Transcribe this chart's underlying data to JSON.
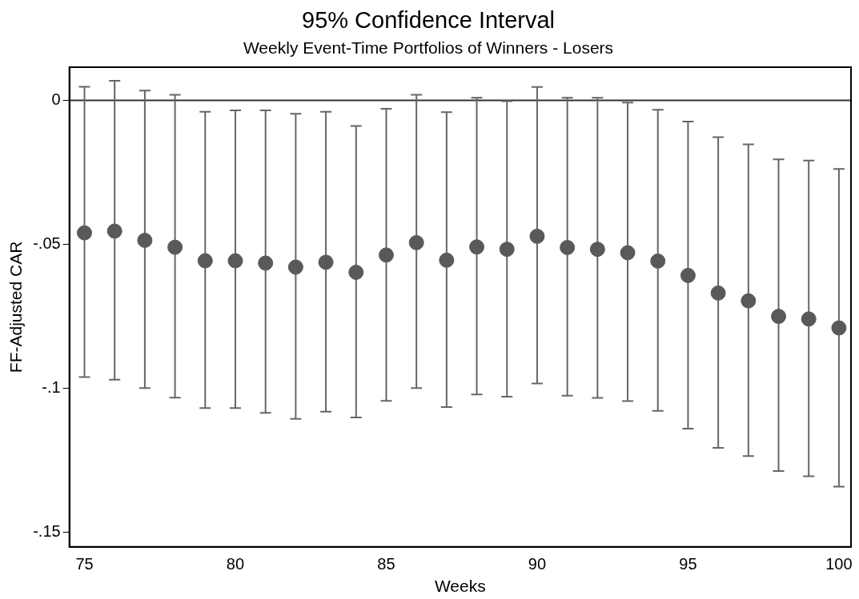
{
  "chart_data": {
    "type": "scatter",
    "title": "95% Confidence Interval",
    "subtitle": "Weekly Event-Time Portfolios of Winners - Losers",
    "xlabel": "Weeks",
    "ylabel": "FF-Adjusted CAR",
    "x": [
      75,
      76,
      77,
      78,
      79,
      80,
      81,
      82,
      83,
      84,
      85,
      86,
      87,
      88,
      89,
      90,
      91,
      92,
      93,
      94,
      95,
      96,
      97,
      98,
      99,
      100
    ],
    "values": [
      -0.046,
      -0.0454,
      -0.0486,
      -0.051,
      -0.0557,
      -0.0557,
      -0.0565,
      -0.0579,
      -0.0562,
      -0.0597,
      -0.0537,
      -0.0494,
      -0.0555,
      -0.0509,
      -0.0517,
      -0.0472,
      -0.0511,
      -0.0517,
      -0.0529,
      -0.0558,
      -0.0608,
      -0.0669,
      -0.0696,
      -0.075,
      -0.0759,
      -0.079
    ],
    "errors": [
      [
        -0.0961,
        0.0047
      ],
      [
        -0.097,
        0.0068
      ],
      [
        -0.0999,
        0.0034
      ],
      [
        -0.1032,
        0.0019
      ],
      [
        -0.1068,
        -0.004
      ],
      [
        -0.1068,
        -0.0035
      ],
      [
        -0.1085,
        -0.0035
      ],
      [
        -0.1106,
        -0.0047
      ],
      [
        -0.1081,
        -0.004
      ],
      [
        -0.1101,
        -0.0089
      ],
      [
        -0.1043,
        -0.0029
      ],
      [
        -0.0999,
        0.0019
      ],
      [
        -0.1065,
        -0.0041
      ],
      [
        -0.1021,
        0.0009
      ],
      [
        -0.1029,
        -0.0003
      ],
      [
        -0.0983,
        0.0046
      ],
      [
        -0.1025,
        0.0009
      ],
      [
        -0.1033,
        0.0009
      ],
      [
        -0.1044,
        -0.0008
      ],
      [
        -0.1078,
        -0.0033
      ],
      [
        -0.114,
        -0.0074
      ],
      [
        -0.1206,
        -0.0128
      ],
      [
        -0.1235,
        -0.0153
      ],
      [
        -0.1287,
        -0.0205
      ],
      [
        -0.1305,
        -0.0209
      ],
      [
        -0.1341,
        -0.0238
      ]
    ],
    "color": "#595959",
    "marker": "circle",
    "xlim": [
      74.5,
      100.4
    ],
    "xticks": [
      75,
      80,
      85,
      90,
      95,
      100
    ],
    "ylim": [
      -0.155,
      0.0115
    ],
    "yticks": [
      {
        "value": 0,
        "label": "0"
      },
      {
        "value": -0.05,
        "label": "-.05"
      },
      {
        "value": -0.1,
        "label": "-.1"
      },
      {
        "value": -0.15,
        "label": "-.15"
      }
    ],
    "ref_lines": [
      {
        "axis": "y",
        "value": 0,
        "color": "#333333"
      }
    ],
    "grid": false,
    "legend": false
  }
}
